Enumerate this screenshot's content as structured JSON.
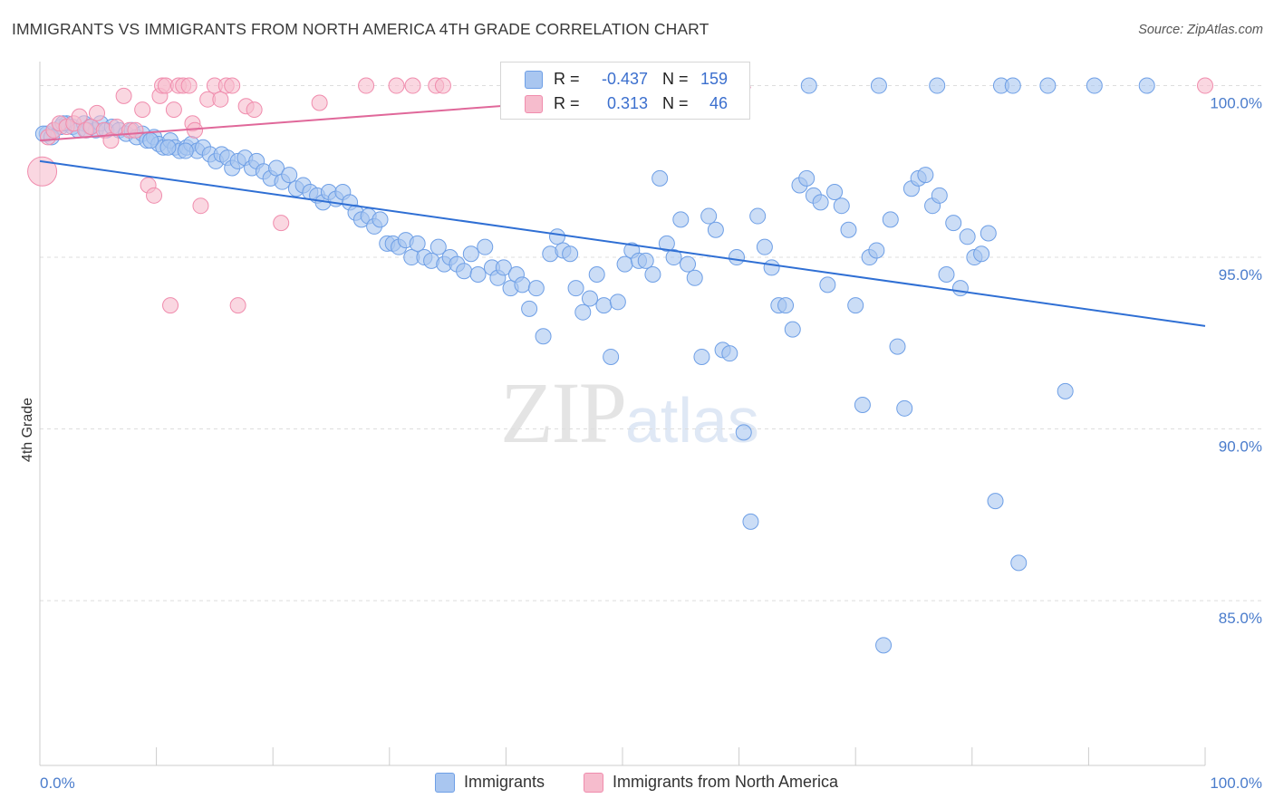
{
  "title": "IMMIGRANTS VS IMMIGRANTS FROM NORTH AMERICA 4TH GRADE CORRELATION CHART",
  "source": "Source: ZipAtlas.com",
  "watermark": {
    "zip": "ZIP",
    "atlas": "atlas"
  },
  "legend": {
    "rows": [
      {
        "r_label": "R =",
        "r_value": "-0.437",
        "n_label": "N =",
        "n_value": "159",
        "color": "#a9c6f0"
      },
      {
        "r_label": "R =",
        "r_value": "0.313",
        "n_label": "N =",
        "n_value": "46",
        "color": "#f6bccd"
      }
    ]
  },
  "bottom_legend": {
    "series": [
      {
        "label": "Immigrants",
        "color": "#a9c6f0"
      },
      {
        "label": "Immigrants from North America",
        "color": "#f6bccd"
      }
    ]
  },
  "chart_data": {
    "type": "scatter",
    "title": "IMMIGRANTS VS IMMIGRANTS FROM NORTH AMERICA 4TH GRADE CORRELATION CHART",
    "xlabel": "",
    "ylabel": "4th Grade",
    "xlim": [
      0,
      100
    ],
    "ylim": [
      80.2,
      100.7
    ],
    "x_tick_labels": [
      "0.0%",
      "100.0%"
    ],
    "y_ticks": [
      85,
      90,
      95,
      100
    ],
    "y_tick_labels": [
      "85.0%",
      "90.0%",
      "95.0%",
      "100.0%"
    ],
    "grid": true,
    "series": [
      {
        "name": "Immigrants",
        "color": "#6e9fe6",
        "fill": "#a9c6f0",
        "trend": {
          "x": [
            0,
            100
          ],
          "y": [
            97.8,
            93.0
          ]
        },
        "points": [
          [
            0.6,
            98.6
          ],
          [
            1.2,
            98.7
          ],
          [
            1.8,
            98.8
          ],
          [
            2.3,
            98.9
          ],
          [
            2.8,
            98.8
          ],
          [
            3.3,
            98.7
          ],
          [
            3.8,
            98.9
          ],
          [
            4.3,
            98.8
          ],
          [
            4.8,
            98.7
          ],
          [
            5.2,
            98.9
          ],
          [
            5.7,
            98.7
          ],
          [
            6.2,
            98.8
          ],
          [
            6.8,
            98.7
          ],
          [
            7.4,
            98.6
          ],
          [
            7.9,
            98.7
          ],
          [
            8.3,
            98.5
          ],
          [
            8.8,
            98.6
          ],
          [
            9.2,
            98.4
          ],
          [
            9.8,
            98.5
          ],
          [
            10.2,
            98.3
          ],
          [
            10.6,
            98.2
          ],
          [
            11.2,
            98.4
          ],
          [
            11.6,
            98.2
          ],
          [
            12.0,
            98.1
          ],
          [
            12.6,
            98.2
          ],
          [
            13.0,
            98.3
          ],
          [
            13.5,
            98.1
          ],
          [
            14.0,
            98.2
          ],
          [
            14.6,
            98.0
          ],
          [
            15.1,
            97.8
          ],
          [
            15.6,
            98.0
          ],
          [
            16.1,
            97.9
          ],
          [
            16.5,
            97.6
          ],
          [
            17.0,
            97.8
          ],
          [
            17.6,
            97.9
          ],
          [
            18.2,
            97.6
          ],
          [
            18.6,
            97.8
          ],
          [
            19.2,
            97.5
          ],
          [
            19.8,
            97.3
          ],
          [
            20.3,
            97.6
          ],
          [
            20.8,
            97.2
          ],
          [
            21.4,
            97.4
          ],
          [
            22.0,
            97.0
          ],
          [
            22.6,
            97.1
          ],
          [
            23.2,
            96.9
          ],
          [
            23.8,
            96.8
          ],
          [
            24.3,
            96.6
          ],
          [
            24.8,
            96.9
          ],
          [
            25.4,
            96.7
          ],
          [
            26.0,
            96.9
          ],
          [
            26.6,
            96.6
          ],
          [
            27.1,
            96.3
          ],
          [
            27.6,
            96.1
          ],
          [
            28.2,
            96.2
          ],
          [
            28.7,
            95.9
          ],
          [
            29.2,
            96.1
          ],
          [
            29.8,
            95.4
          ],
          [
            30.3,
            95.4
          ],
          [
            30.8,
            95.3
          ],
          [
            31.4,
            95.5
          ],
          [
            31.9,
            95.0
          ],
          [
            32.4,
            95.4
          ],
          [
            33.0,
            95.0
          ],
          [
            33.6,
            94.9
          ],
          [
            34.2,
            95.3
          ],
          [
            34.7,
            94.8
          ],
          [
            35.2,
            95.0
          ],
          [
            35.8,
            94.8
          ],
          [
            36.4,
            94.6
          ],
          [
            37.0,
            95.1
          ],
          [
            37.6,
            94.5
          ],
          [
            38.2,
            95.3
          ],
          [
            38.8,
            94.7
          ],
          [
            39.3,
            94.4
          ],
          [
            39.8,
            94.7
          ],
          [
            40.4,
            94.1
          ],
          [
            40.9,
            94.5
          ],
          [
            41.4,
            94.2
          ],
          [
            42.0,
            93.5
          ],
          [
            42.6,
            94.1
          ],
          [
            43.2,
            92.7
          ],
          [
            43.8,
            95.1
          ],
          [
            44.4,
            95.6
          ],
          [
            44.9,
            95.2
          ],
          [
            45.5,
            95.1
          ],
          [
            46.0,
            94.1
          ],
          [
            46.6,
            93.4
          ],
          [
            47.2,
            93.8
          ],
          [
            47.8,
            94.5
          ],
          [
            48.4,
            93.6
          ],
          [
            49.0,
            92.1
          ],
          [
            49.6,
            93.7
          ],
          [
            50.2,
            94.8
          ],
          [
            50.8,
            95.2
          ],
          [
            51.4,
            94.9
          ],
          [
            52.0,
            94.9
          ],
          [
            52.6,
            94.5
          ],
          [
            53.2,
            97.3
          ],
          [
            53.8,
            95.4
          ],
          [
            54.4,
            95.0
          ],
          [
            55.0,
            96.1
          ],
          [
            55.6,
            94.8
          ],
          [
            56.2,
            94.4
          ],
          [
            56.8,
            92.1
          ],
          [
            57.4,
            96.2
          ],
          [
            58.0,
            95.8
          ],
          [
            58.6,
            92.3
          ],
          [
            59.2,
            92.2
          ],
          [
            59.8,
            95.0
          ],
          [
            60.4,
            89.9
          ],
          [
            61.0,
            87.3
          ],
          [
            61.6,
            96.2
          ],
          [
            62.2,
            95.3
          ],
          [
            62.8,
            94.7
          ],
          [
            63.4,
            93.6
          ],
          [
            64.0,
            93.6
          ],
          [
            64.6,
            92.9
          ],
          [
            65.2,
            97.1
          ],
          [
            65.8,
            97.3
          ],
          [
            66.4,
            96.8
          ],
          [
            67.0,
            96.6
          ],
          [
            67.6,
            94.2
          ],
          [
            68.2,
            96.9
          ],
          [
            68.8,
            96.5
          ],
          [
            69.4,
            95.8
          ],
          [
            70.0,
            93.6
          ],
          [
            70.6,
            90.7
          ],
          [
            71.2,
            95.0
          ],
          [
            71.8,
            95.2
          ],
          [
            72.4,
            83.7
          ],
          [
            73.0,
            96.1
          ],
          [
            73.6,
            92.4
          ],
          [
            74.2,
            90.6
          ],
          [
            74.8,
            97.0
          ],
          [
            75.4,
            97.3
          ],
          [
            76.0,
            97.4
          ],
          [
            76.6,
            96.5
          ],
          [
            77.2,
            96.8
          ],
          [
            77.8,
            94.5
          ],
          [
            78.4,
            96.0
          ],
          [
            79.0,
            94.1
          ],
          [
            79.6,
            95.6
          ],
          [
            80.2,
            95.0
          ],
          [
            80.8,
            95.1
          ],
          [
            81.4,
            95.7
          ],
          [
            82.0,
            87.9
          ],
          [
            84.0,
            86.1
          ],
          [
            88.0,
            91.1
          ],
          [
            66.0,
            100.0
          ],
          [
            72.0,
            100.0
          ],
          [
            77.0,
            100.0
          ],
          [
            82.5,
            100.0
          ],
          [
            83.5,
            100.0
          ],
          [
            86.5,
            100.0
          ],
          [
            90.5,
            100.0
          ],
          [
            95.0,
            100.0
          ],
          [
            0.3,
            98.6
          ],
          [
            1.0,
            98.5
          ],
          [
            2.0,
            98.9
          ],
          [
            11.0,
            98.2
          ],
          [
            9.5,
            98.4
          ],
          [
            4.0,
            98.7
          ],
          [
            12.5,
            98.1
          ]
        ]
      },
      {
        "name": "Immigrants from North America",
        "color": "#f08cad",
        "fill": "#f6bccd",
        "trend": {
          "x": [
            0,
            61
          ],
          "y": [
            98.4,
            99.95
          ]
        },
        "points": [
          [
            0.2,
            97.5
          ],
          [
            0.7,
            98.5
          ],
          [
            1.2,
            98.7
          ],
          [
            1.7,
            98.9
          ],
          [
            2.3,
            98.8
          ],
          [
            2.9,
            98.9
          ],
          [
            3.4,
            99.1
          ],
          [
            3.9,
            98.7
          ],
          [
            4.4,
            98.8
          ],
          [
            4.9,
            99.2
          ],
          [
            5.5,
            98.7
          ],
          [
            6.1,
            98.4
          ],
          [
            6.6,
            98.8
          ],
          [
            7.2,
            99.7
          ],
          [
            7.7,
            98.7
          ],
          [
            8.2,
            98.7
          ],
          [
            8.8,
            99.3
          ],
          [
            9.3,
            97.1
          ],
          [
            9.8,
            96.8
          ],
          [
            10.3,
            99.7
          ],
          [
            10.5,
            100.0
          ],
          [
            10.8,
            100.0
          ],
          [
            11.2,
            93.6
          ],
          [
            11.5,
            99.3
          ],
          [
            11.9,
            100.0
          ],
          [
            12.3,
            100.0
          ],
          [
            12.8,
            100.0
          ],
          [
            13.1,
            98.9
          ],
          [
            13.3,
            98.7
          ],
          [
            13.8,
            96.5
          ],
          [
            14.4,
            99.6
          ],
          [
            15.0,
            100.0
          ],
          [
            15.5,
            99.6
          ],
          [
            16.0,
            100.0
          ],
          [
            16.5,
            100.0
          ],
          [
            17.0,
            93.6
          ],
          [
            17.7,
            99.4
          ],
          [
            18.4,
            99.3
          ],
          [
            20.7,
            96.0
          ],
          [
            24.0,
            99.5
          ],
          [
            28.0,
            100.0
          ],
          [
            30.6,
            100.0
          ],
          [
            32.0,
            100.0
          ],
          [
            34.0,
            100.0
          ],
          [
            34.6,
            100.0
          ],
          [
            100.0,
            100.0
          ]
        ]
      }
    ]
  }
}
